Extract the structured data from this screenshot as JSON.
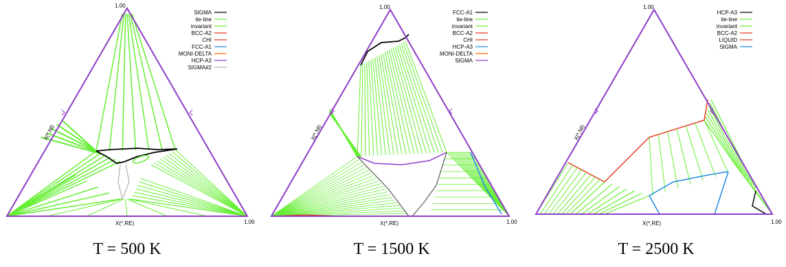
{
  "panels": [
    {
      "apex_label": "1.00",
      "right_label": "1.00",
      "x_axis_label": "X(*,RE)",
      "y_axis_label": "X(*,NI)",
      "caption": "T = 500 K",
      "legend": [
        {
          "name": "SIGMA",
          "color": "#000000"
        },
        {
          "name": "tie-line",
          "color": "#66ee33"
        },
        {
          "name": "invariant",
          "color": "#66ee33"
        },
        {
          "name": "BCC-A2",
          "color": "#e8391d"
        },
        {
          "name": "CHI",
          "color": "#e8391d"
        },
        {
          "name": "FCC-A1",
          "color": "#1e88e5"
        },
        {
          "name": "MONI-DELTA",
          "color": "#ff6a00"
        },
        {
          "name": "HCP-A3",
          "color": "#8e3bc7"
        },
        {
          "name": "SIGMA#2",
          "color": "#b0b0b0"
        }
      ]
    },
    {
      "apex_label": "1.00",
      "right_label": "1.00",
      "x_axis_label": "X(*,RE)",
      "y_axis_label": "X(*,NI)",
      "caption": "T = 1500 K",
      "legend": [
        {
          "name": "FCC-A1",
          "color": "#000000"
        },
        {
          "name": "tie-line",
          "color": "#66ee33"
        },
        {
          "name": "invariant",
          "color": "#66ee33"
        },
        {
          "name": "BCC-A2",
          "color": "#e8391d"
        },
        {
          "name": "CHI",
          "color": "#e8391d"
        },
        {
          "name": "HCP-A3",
          "color": "#1e88e5"
        },
        {
          "name": "MONI-DELTA",
          "color": "#ff6a00"
        },
        {
          "name": "SIGMA",
          "color": "#8e3bc7"
        }
      ]
    },
    {
      "apex_label": "1.00",
      "right_label": "1.00",
      "x_axis_label": "X(*,RE)",
      "y_axis_label": "X(*,NI)",
      "caption": "T = 2500 K",
      "legend": [
        {
          "name": "HCP-A3",
          "color": "#000000"
        },
        {
          "name": "tie-line",
          "color": "#66ee33"
        },
        {
          "name": "invariant",
          "color": "#66ee33"
        },
        {
          "name": "BCC-A2",
          "color": "#e8391d"
        },
        {
          "name": "LIQUID",
          "color": "#e8391d"
        },
        {
          "name": "SIGMA",
          "color": "#1e88e5"
        }
      ]
    }
  ],
  "colors": {
    "frame": "#8e3bc7",
    "tie": "#66ee33",
    "boundary": "#000000",
    "red": "#e8391d",
    "blue": "#1e88e5"
  }
}
